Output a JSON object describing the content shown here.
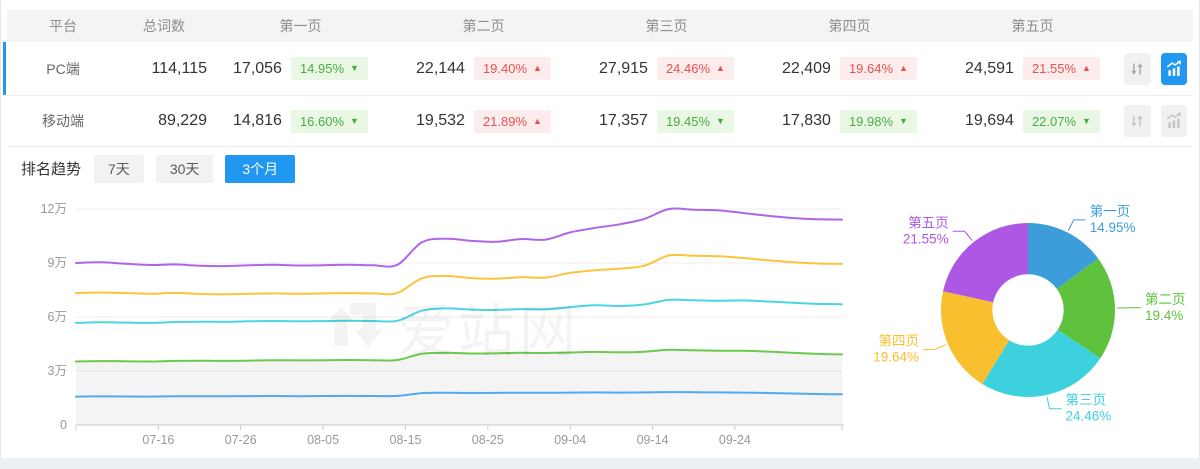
{
  "table": {
    "columns": [
      "平台",
      "总词数",
      "第一页",
      "第二页",
      "第三页",
      "第四页",
      "第五页"
    ],
    "rows": [
      {
        "platform": "PC端",
        "total": "114,115",
        "selected": true,
        "pages": [
          {
            "count": "17,056",
            "pct": "14.95%",
            "dir": "down"
          },
          {
            "count": "22,144",
            "pct": "19.40%",
            "dir": "up"
          },
          {
            "count": "27,915",
            "pct": "24.46%",
            "dir": "up"
          },
          {
            "count": "22,409",
            "pct": "19.64%",
            "dir": "up"
          },
          {
            "count": "24,591",
            "pct": "21.55%",
            "dir": "up"
          }
        ]
      },
      {
        "platform": "移动端",
        "total": "89,229",
        "selected": false,
        "pages": [
          {
            "count": "14,816",
            "pct": "16.60%",
            "dir": "down"
          },
          {
            "count": "19,532",
            "pct": "21.89%",
            "dir": "up"
          },
          {
            "count": "17,357",
            "pct": "19.45%",
            "dir": "down"
          },
          {
            "count": "17,830",
            "pct": "19.98%",
            "dir": "down"
          },
          {
            "count": "19,694",
            "pct": "22.07%",
            "dir": "down"
          }
        ]
      }
    ]
  },
  "icons": {
    "sort": "sort-arrows-icon",
    "trend_chart": "trend-chart-icon",
    "up_arrow": "▲",
    "down_arrow": "▼"
  },
  "trend": {
    "label": "排名趋势",
    "ranges": [
      "7天",
      "30天",
      "3个月"
    ],
    "active": "3个月"
  },
  "watermark": "爱站网",
  "colors": {
    "accent_blue": "#2097f0",
    "badge_up_text": "#e85252",
    "badge_up_bg": "#fdecec",
    "badge_down_text": "#47ad43",
    "badge_down_bg": "#eaf7e4"
  },
  "chart_data": [
    {
      "type": "line",
      "title": "排名趋势 3个月 (PC端累计词数)",
      "stacked_cumulative": true,
      "grid": true,
      "ylim": [
        0,
        120000
      ],
      "y_ticks": [
        {
          "value": 0,
          "label": "0"
        },
        {
          "value": 30000,
          "label": "3万"
        },
        {
          "value": 60000,
          "label": "6万"
        },
        {
          "value": 90000,
          "label": "9万"
        },
        {
          "value": 120000,
          "label": "12万"
        }
      ],
      "x_day_span": [
        0,
        93
      ],
      "x_ticks": [
        {
          "day": 10,
          "label": "07-16"
        },
        {
          "day": 20,
          "label": "07-26"
        },
        {
          "day": 30,
          "label": "08-05"
        },
        {
          "day": 40,
          "label": "08-15"
        },
        {
          "day": 50,
          "label": "08-25"
        },
        {
          "day": 60,
          "label": "09-04"
        },
        {
          "day": 70,
          "label": "09-14"
        },
        {
          "day": 80,
          "label": "09-24"
        }
      ],
      "dates": [
        "07-06",
        "07-09",
        "07-12",
        "07-15",
        "07-18",
        "07-21",
        "07-24",
        "07-27",
        "07-30",
        "08-02",
        "08-05",
        "08-08",
        "08-11",
        "08-14",
        "08-17",
        "08-20",
        "08-23",
        "08-26",
        "08-29",
        "09-01",
        "09-04",
        "09-07",
        "09-10",
        "09-13",
        "09-16",
        "09-19",
        "09-22",
        "09-25",
        "09-28",
        "10-01",
        "10-04",
        "10-07"
      ],
      "day_offsets": [
        0,
        3,
        6,
        9,
        12,
        15,
        18,
        21,
        24,
        27,
        30,
        33,
        36,
        39,
        42,
        45,
        48,
        51,
        54,
        57,
        60,
        63,
        66,
        69,
        72,
        75,
        78,
        81,
        84,
        87,
        90,
        93
      ],
      "series": [
        {
          "name": "第一页",
          "color": "#54a9ea",
          "area": false,
          "values": [
            15800,
            15900,
            15850,
            15800,
            15950,
            16000,
            15950,
            16050,
            16100,
            16000,
            16100,
            16150,
            16100,
            16150,
            17700,
            17900,
            17800,
            17850,
            17950,
            17900,
            18000,
            18100,
            18000,
            18100,
            18300,
            18200,
            18100,
            18000,
            17800,
            17500,
            17200,
            17056
          ]
        },
        {
          "name": "第二页",
          "color": "#6cc84e",
          "area": true,
          "values": [
            35300,
            35500,
            35400,
            35300,
            35600,
            35700,
            35600,
            35800,
            36000,
            35900,
            36000,
            36100,
            36000,
            36100,
            39600,
            40100,
            39700,
            39800,
            40100,
            40000,
            40300,
            40600,
            40400,
            40700,
            41800,
            41500,
            41300,
            41200,
            40800,
            40100,
            39500,
            39200
          ]
        },
        {
          "name": "第三页",
          "color": "#4cd5e0",
          "area": false,
          "values": [
            56700,
            57100,
            56900,
            56700,
            57200,
            57400,
            57300,
            57600,
            57800,
            57600,
            57700,
            57900,
            57800,
            57900,
            63500,
            64800,
            64100,
            63900,
            64400,
            64300,
            65500,
            66500,
            66100,
            67000,
            69500,
            69300,
            69000,
            69200,
            68600,
            67900,
            67300,
            67115
          ]
        },
        {
          "name": "第四页",
          "color": "#fbc43c",
          "area": false,
          "values": [
            73300,
            73600,
            73300,
            72900,
            73400,
            72800,
            72600,
            72900,
            73100,
            72900,
            73100,
            73300,
            73100,
            73300,
            81500,
            82800,
            81600,
            81300,
            82100,
            81900,
            84500,
            86000,
            86800,
            88500,
            94200,
            94000,
            93800,
            92800,
            91500,
            90400,
            89700,
            89524
          ]
        },
        {
          "name": "第五页",
          "color": "#b065e6",
          "area": false,
          "values": [
            90000,
            90400,
            89600,
            88900,
            89200,
            88500,
            88300,
            88700,
            89000,
            88600,
            88800,
            89000,
            88700,
            89000,
            101500,
            103500,
            102300,
            101800,
            103300,
            103000,
            107000,
            109500,
            111500,
            114500,
            120000,
            119600,
            119200,
            117800,
            116200,
            115000,
            114300,
            114115
          ]
        }
      ]
    },
    {
      "type": "pie",
      "title": "PC端各页占比",
      "inner_radius_ratio": 0.41,
      "labels": [
        "第一页",
        "第二页",
        "第三页",
        "第四页",
        "第五页"
      ],
      "values": [
        14.95,
        19.4,
        24.46,
        19.64,
        21.55
      ],
      "display": [
        "14.95%",
        "19.4%",
        "24.46%",
        "19.64%",
        "21.55%"
      ],
      "colors": [
        "#3d9ddb",
        "#5ec23c",
        "#3dd1de",
        "#f8c02e",
        "#ad58e5"
      ]
    }
  ]
}
